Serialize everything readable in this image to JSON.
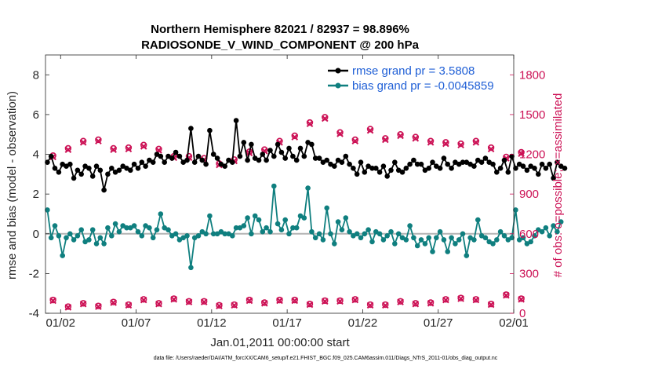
{
  "chart_data": {
    "type": "line",
    "title": "Northern Hemisphere 82021 / 82937 = 98.896%",
    "subtitle": "RADIOSONDE_V_WIND_COMPONENT @ 200 hPa",
    "xlabel": "Jan.01,2011 00:00:00 start",
    "ylabel_left": "rmse and bias (model - observation)",
    "ylabel_right": "# of obs: o=possible; ×=assimilated",
    "footer": "data file: /Users/raeder/DAI/ATM_forcXX/CAM6_setup/f.e21.FHIST_BGC.f09_025.CAM6assim.011/Diags_NTrS_2011-01/obs_diag_output.nc",
    "x_range": [
      0,
      31
    ],
    "x_ticks": [
      {
        "v": 1,
        "label": "01/02"
      },
      {
        "v": 6,
        "label": "01/07"
      },
      {
        "v": 11,
        "label": "01/12"
      },
      {
        "v": 16,
        "label": "01/17"
      },
      {
        "v": 21,
        "label": "01/22"
      },
      {
        "v": 26,
        "label": "01/27"
      },
      {
        "v": 31,
        "label": "02/01"
      }
    ],
    "y_left": {
      "range": [
        -4,
        9
      ],
      "ticks": [
        "-4",
        "-2",
        "0",
        "2",
        "4",
        "6",
        "8"
      ]
    },
    "y_right": {
      "range": [
        0,
        1950
      ],
      "ticks": [
        "0",
        "300",
        "600",
        "900",
        "1200",
        "1500",
        "1800"
      ]
    },
    "legend": [
      {
        "name": "rmse grand pr = 3.5808",
        "color": "#000000"
      },
      {
        "name": "bias grand pr = -0.0045859",
        "color": "#0f7f7f"
      }
    ],
    "colors": {
      "rmse": "#000000",
      "bias": "#0f7f7f",
      "obs": "#cc1155",
      "zero_line": "#b3b3b3",
      "axis_left": "#262626",
      "legend_text": "#1f5fd6"
    },
    "series": [
      {
        "name": "rmse",
        "axis": "left",
        "step": 0.25,
        "values": [
          3.6,
          3.9,
          3.3,
          3.1,
          3.5,
          3.4,
          3.5,
          2.8,
          3.2,
          3.0,
          3.4,
          3.3,
          2.9,
          3.4,
          3.2,
          2.2,
          3.0,
          3.3,
          3.1,
          3.2,
          3.4,
          3.3,
          3.2,
          3.5,
          3.3,
          3.6,
          3.4,
          3.7,
          3.6,
          4.0,
          3.9,
          3.6,
          3.9,
          3.8,
          4.1,
          3.9,
          3.6,
          3.7,
          5.3,
          3.6,
          3.9,
          3.7,
          3.5,
          5.2,
          4.0,
          3.8,
          3.5,
          3.4,
          3.7,
          3.6,
          5.7,
          3.9,
          4.6,
          3.7,
          4.5,
          3.8,
          3.7,
          4.0,
          3.7,
          4.2,
          3.9,
          4.5,
          4.1,
          3.8,
          4.3,
          3.9,
          3.7,
          4.3,
          3.9,
          4.6,
          4.5,
          3.8,
          3.8,
          3.6,
          3.7,
          3.5,
          3.4,
          3.7,
          3.6,
          3.9,
          3.5,
          3.3,
          3.0,
          3.6,
          3.1,
          3.4,
          3.3,
          3.3,
          3.1,
          3.4,
          2.9,
          3.2,
          3.6,
          3.2,
          3.1,
          3.3,
          3.5,
          3.7,
          3.5,
          3.5,
          3.2,
          3.3,
          3.6,
          3.4,
          3.3,
          3.8,
          3.5,
          3.3,
          3.6,
          3.5,
          3.6,
          3.6,
          3.5,
          3.4,
          3.7,
          3.6,
          3.8,
          3.6,
          3.5,
          3.1,
          3.3,
          3.7,
          3.1,
          3.9,
          3.3,
          3.5,
          3.4,
          3.2,
          3.4,
          3.3,
          3.0,
          3.5,
          3.3,
          3.5,
          2.8,
          3.6,
          3.4,
          3.3
        ]
      },
      {
        "name": "bias",
        "axis": "left",
        "step": 0.25,
        "values": [
          1.2,
          -0.2,
          0.4,
          -0.1,
          -1.1,
          -0.2,
          0.0,
          -0.3,
          -0.1,
          0.2,
          -0.4,
          -0.3,
          0.2,
          -0.5,
          -0.2,
          -0.5,
          0.3,
          -0.1,
          0.5,
          0.1,
          0.4,
          0.3,
          0.3,
          0.4,
          0.1,
          -0.1,
          0.4,
          0.3,
          -0.2,
          0.2,
          1.0,
          0.3,
          0.2,
          -0.1,
          0.0,
          -0.3,
          -0.2,
          -0.1,
          -1.7,
          -0.2,
          -0.1,
          0.1,
          0.0,
          0.9,
          0.0,
          0.0,
          0.1,
          0.0,
          0.0,
          -0.1,
          0.3,
          0.3,
          0.4,
          0.8,
          0.0,
          0.9,
          0.7,
          0.1,
          0.3,
          0.1,
          2.4,
          0.5,
          0.2,
          0.7,
          0.0,
          0.3,
          0.3,
          0.9,
          0.8,
          2.3,
          0.1,
          -0.2,
          0.0,
          -0.3,
          1.3,
          0.0,
          -0.5,
          0.6,
          0.2,
          0.8,
          0.1,
          -0.1,
          0.0,
          -0.2,
          0.0,
          0.2,
          -0.4,
          0.1,
          0.0,
          -0.3,
          -0.1,
          0.1,
          -0.5,
          0.0,
          -0.2,
          -0.3,
          0.4,
          -0.2,
          -0.6,
          -0.3,
          -0.5,
          -0.2,
          -0.9,
          -0.2,
          0.1,
          -0.3,
          -0.9,
          -0.2,
          -0.5,
          -0.3,
          0.0,
          -1.1,
          -0.2,
          -0.3,
          0.7,
          -0.1,
          -0.2,
          -0.4,
          -0.5,
          -0.3,
          0.1,
          -0.1,
          -0.3,
          -0.2,
          1.2,
          -0.3,
          -0.2,
          -0.5,
          -0.4,
          -0.1,
          0.2,
          0.1,
          0.3,
          -0.1,
          0.4,
          0.1,
          0.6
        ]
      },
      {
        "name": "possible",
        "axis": "right",
        "marker": "o",
        "step": 1,
        "values": [
          1190,
          1245,
          1300,
          1310,
          1245,
          1250,
          1270,
          1240,
          1185,
          1185,
          1170,
          1130,
          1160,
          1220,
          1235,
          1300,
          1340,
          1440,
          1480,
          1365,
          1310,
          1390,
          1320,
          1350,
          1330,
          1300,
          1290,
          1280,
          1300,
          1250,
          1180,
          1215
        ]
      },
      {
        "name": "assimilated",
        "axis": "right",
        "marker": "x",
        "step": 1,
        "values": [
          1180,
          1235,
          1290,
          1300,
          1235,
          1240,
          1260,
          1230,
          1175,
          1175,
          1160,
          1120,
          1150,
          1210,
          1225,
          1290,
          1330,
          1430,
          1470,
          1355,
          1300,
          1380,
          1310,
          1340,
          1320,
          1290,
          1280,
          1270,
          1290,
          1240,
          1170,
          1205
        ]
      },
      {
        "name": "possible-low",
        "axis": "right",
        "marker": "o",
        "step": 1,
        "values": [
          100,
          50,
          75,
          55,
          85,
          65,
          105,
          75,
          110,
          90,
          90,
          60,
          65,
          100,
          80,
          100,
          100,
          70,
          95,
          95,
          105,
          65,
          65,
          90,
          75,
          80,
          105,
          115,
          105,
          70,
          140,
          110
        ]
      },
      {
        "name": "assimilated-low",
        "axis": "right",
        "marker": "x",
        "step": 1,
        "values": [
          95,
          45,
          70,
          50,
          80,
          60,
          100,
          70,
          105,
          85,
          85,
          55,
          60,
          95,
          75,
          95,
          95,
          65,
          90,
          90,
          100,
          60,
          60,
          85,
          70,
          75,
          100,
          110,
          100,
          65,
          135,
          105
        ]
      }
    ]
  }
}
